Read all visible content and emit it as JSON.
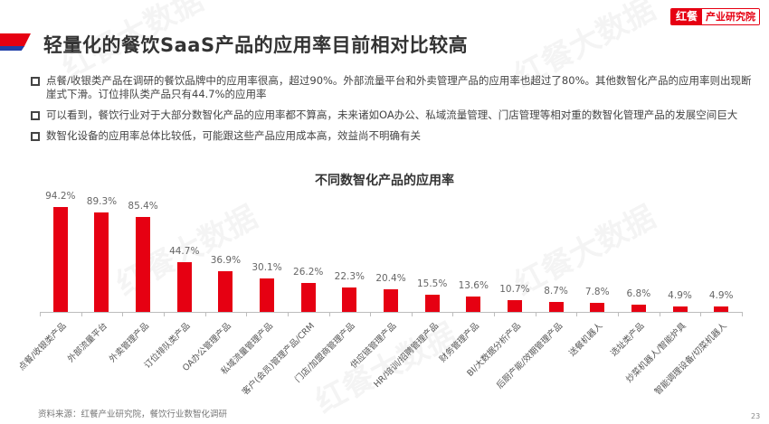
{
  "header": {
    "title": "轻量化的餐饮SaaS产品的应用率目前相对比较高",
    "logo_left": "红餐",
    "logo_right": "产业研究院"
  },
  "bullets": [
    {
      "text": "点餐/收银类产品在调研的餐饮品牌中的应用率很高，超过90%。外部流量平台和外卖管理产品的应用率也超过了80%。其他数智化产品的应用率则出现断崖式下滑。订位排队类产品只有44.7%的应用率"
    },
    {
      "text": "可以看到，餐饮行业对于大部分数智化产品的应用率都不算高，未来诸如OA办公、私域流量管理、门店管理等相对重的数智化管理产品的发展空间巨大"
    },
    {
      "text": "数智化设备的应用率总体比较低，可能跟这些产品应用成本高，效益尚不明确有关"
    }
  ],
  "watermark_text": "红餐大数据",
  "chart_data": {
    "type": "bar",
    "title": "不同数智化产品的应用率",
    "xlabel": "",
    "ylabel": "",
    "ylim": [
      0,
      100
    ],
    "grid": false,
    "legend": null,
    "bar_color": "#e60012",
    "categories": [
      "点餐/收银类产品",
      "外部流量平台",
      "外卖管理产品",
      "订位排队类产品",
      "OA办公管理产品",
      "私域流量管理产品",
      "客户(会员)管理产品/CRM",
      "门店/加盟商管理产品",
      "供应链管理产品",
      "HR/培训/招聘管理产品",
      "财务管理产品",
      "BI/大数据分析产品",
      "后厨产能/效期管理产品",
      "送餐机器人",
      "选址类产品",
      "炒菜机器人/智能炉具",
      "智能调理设备/切菜机器人"
    ],
    "values": [
      94.2,
      89.3,
      85.4,
      44.7,
      36.9,
      30.1,
      26.2,
      22.3,
      20.4,
      15.5,
      13.6,
      10.7,
      8.7,
      7.8,
      6.8,
      4.9,
      4.9
    ],
    "labels": [
      "94.2%",
      "89.3%",
      "85.4%",
      "44.7%",
      "36.9%",
      "30.1%",
      "26.2%",
      "22.3%",
      "20.4%",
      "15.5%",
      "13.6%",
      "10.7%",
      "8.7%",
      "7.8%",
      "6.8%",
      "4.9%",
      "4.9%"
    ]
  },
  "footer": {
    "source": "资料来源：红餐产业研究院，餐饮行业数智化调研",
    "page_number": "23"
  }
}
